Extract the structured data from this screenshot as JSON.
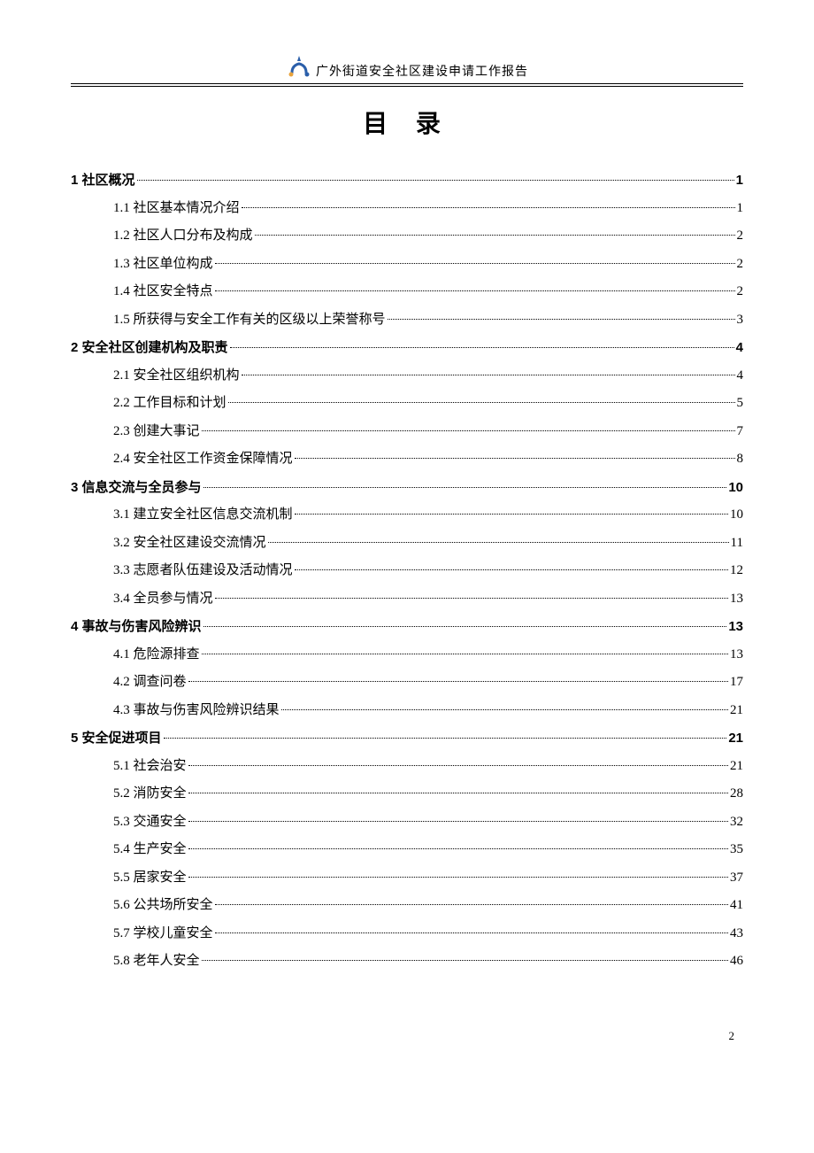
{
  "header": {
    "subtitle": "广外街道安全社区建设申请工作报告"
  },
  "toc": {
    "title": "目 录",
    "items": [
      {
        "level": 1,
        "label": "1 社区概况",
        "page": "1"
      },
      {
        "level": 2,
        "label": "1.1 社区基本情况介绍",
        "page": "1"
      },
      {
        "level": 2,
        "label": "1.2 社区人口分布及构成",
        "page": "2"
      },
      {
        "level": 2,
        "label": "1.3 社区单位构成",
        "page": "2"
      },
      {
        "level": 2,
        "label": "1.4 社区安全特点",
        "page": "2"
      },
      {
        "level": 2,
        "label": "1.5 所获得与安全工作有关的区级以上荣誉称号",
        "page": "3"
      },
      {
        "level": 1,
        "label": "2 安全社区创建机构及职责",
        "page": "4"
      },
      {
        "level": 2,
        "label": "2.1 安全社区组织机构",
        "page": "4"
      },
      {
        "level": 2,
        "label": "2.2 工作目标和计划",
        "page": "5"
      },
      {
        "level": 2,
        "label": "2.3 创建大事记",
        "page": "7"
      },
      {
        "level": 2,
        "label": "2.4 安全社区工作资金保障情况",
        "page": "8"
      },
      {
        "level": 1,
        "label": "3 信息交流与全员参与",
        "page": "10"
      },
      {
        "level": 2,
        "label": "3.1 建立安全社区信息交流机制",
        "page": "10"
      },
      {
        "level": 2,
        "label": "3.2 安全社区建设交流情况",
        "page": "11"
      },
      {
        "level": 2,
        "label": "3.3 志愿者队伍建设及活动情况",
        "page": "12"
      },
      {
        "level": 2,
        "label": "3.4 全员参与情况",
        "page": "13"
      },
      {
        "level": 1,
        "label": "4 事故与伤害风险辨识",
        "page": "13"
      },
      {
        "level": 2,
        "label": "4.1 危险源排查",
        "page": "13"
      },
      {
        "level": 2,
        "label": "4.2 调查问卷",
        "page": "17"
      },
      {
        "level": 2,
        "label": "4.3 事故与伤害风险辨识结果",
        "page": "21"
      },
      {
        "level": 1,
        "label": "5 安全促进项目",
        "page": "21"
      },
      {
        "level": 2,
        "label": "5.1 社会治安",
        "page": "21"
      },
      {
        "level": 2,
        "label": "5.2 消防安全",
        "page": "28"
      },
      {
        "level": 2,
        "label": "5.3 交通安全",
        "page": "32"
      },
      {
        "level": 2,
        "label": "5.4 生产安全",
        "page": "35"
      },
      {
        "level": 2,
        "label": "5.5 居家安全",
        "page": "37"
      },
      {
        "level": 2,
        "label": "5.6 公共场所安全",
        "page": "41"
      },
      {
        "level": 2,
        "label": "5.7 学校儿童安全",
        "page": "43"
      },
      {
        "level": 2,
        "label": "5.8 老年人安全",
        "page": "46"
      }
    ]
  },
  "page_number": "2",
  "colors": {
    "text": "#000000",
    "background": "#ffffff",
    "logo_blue": "#2b5faa",
    "logo_orange": "#e8a33d"
  }
}
